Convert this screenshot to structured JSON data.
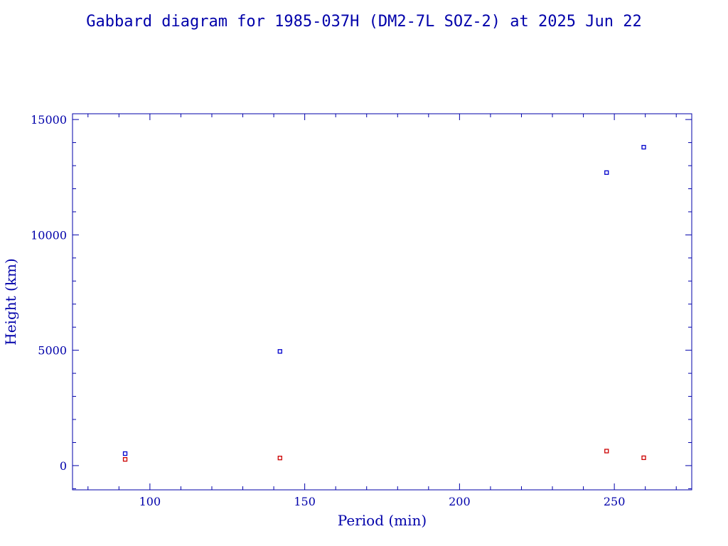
{
  "chart_data": {
    "type": "scatter",
    "title": "Gabbard diagram for 1985-037H (DM2-7L SOZ-2) at 2025 Jun 22",
    "xlabel": "Period (min)",
    "ylabel": "Height (km)",
    "xlim": [
      75,
      275
    ],
    "ylim": [
      -1050,
      15250
    ],
    "x_major_ticks": [
      100,
      150,
      200,
      250
    ],
    "x_minor_step": 10,
    "y_major_ticks": [
      0,
      5000,
      10000,
      15000
    ],
    "y_minor_step": 1000,
    "grid": false,
    "legend": "none",
    "colors": {
      "text": "#0000aa",
      "axes": "#0000aa",
      "apogee": "#0000cc",
      "perigee": "#cc0000"
    },
    "series": [
      {
        "role": "apogee",
        "color": "#0000cc",
        "points": [
          {
            "x": 92,
            "y": 520
          },
          {
            "x": 142,
            "y": 4950
          },
          {
            "x": 247.5,
            "y": 12700
          },
          {
            "x": 259.5,
            "y": 13800
          }
        ]
      },
      {
        "role": "perigee",
        "color": "#cc0000",
        "points": [
          {
            "x": 92,
            "y": 270
          },
          {
            "x": 142,
            "y": 330
          },
          {
            "x": 247.5,
            "y": 630
          },
          {
            "x": 259.5,
            "y": 340
          }
        ]
      }
    ]
  }
}
